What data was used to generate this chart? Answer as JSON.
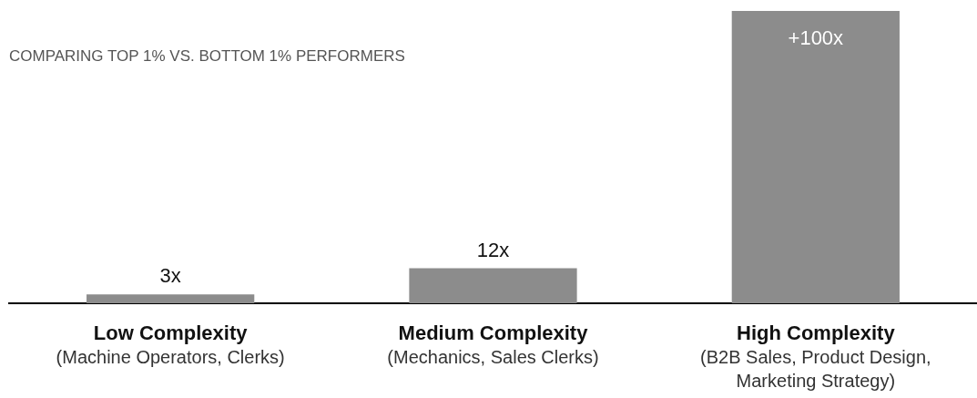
{
  "chart_data": {
    "type": "bar",
    "title": "COMPARING TOP 1% VS. BOTTOM 1% PERFORMERS",
    "categories": [
      "Low Complexity\n(Machine Operators, Clerks)",
      "Medium Complexity\n(Mechanics, Sales Clerks)",
      "High Complexity\n(B2B Sales, Product Design,\nMarketing Strategy)"
    ],
    "values": [
      3,
      12,
      100
    ],
    "value_labels": [
      "3x",
      "12x",
      "+100x"
    ],
    "color": "#8c8c8c",
    "grid": false,
    "legend": false
  }
}
